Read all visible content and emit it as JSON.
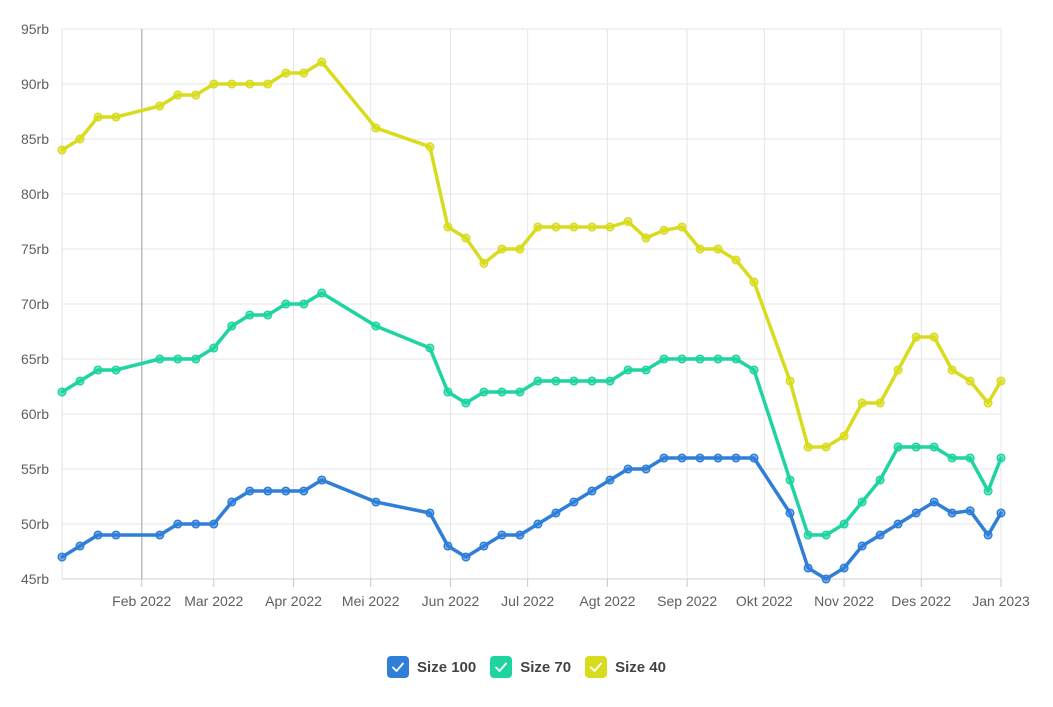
{
  "chart_data": {
    "type": "line",
    "title": "",
    "xlabel": "",
    "ylabel": "",
    "x_range": [
      "2022-01-01",
      "2023-01-01"
    ],
    "ylim": [
      45,
      95
    ],
    "y_ticks": [
      45,
      50,
      55,
      60,
      65,
      70,
      75,
      80,
      85,
      90,
      95
    ],
    "y_tick_suffix": "rb",
    "grid": true,
    "legend_position": "bottom",
    "x_ticks": [
      {
        "date": "2022-02-01",
        "label": "Feb 2022"
      },
      {
        "date": "2022-03-01",
        "label": "Mar 2022"
      },
      {
        "date": "2022-04-01",
        "label": "Apr 2022"
      },
      {
        "date": "2022-05-01",
        "label": "Mei 2022"
      },
      {
        "date": "2022-06-01",
        "label": "Jun 2022"
      },
      {
        "date": "2022-07-01",
        "label": "Jul 2022"
      },
      {
        "date": "2022-08-01",
        "label": "Agt 2022"
      },
      {
        "date": "2022-09-01",
        "label": "Sep 2022"
      },
      {
        "date": "2022-10-01",
        "label": "Okt 2022"
      },
      {
        "date": "2022-11-01",
        "label": "Nov 2022"
      },
      {
        "date": "2022-12-01",
        "label": "Des 2022"
      },
      {
        "date": "2023-01-01",
        "label": "Jan 2023"
      }
    ],
    "series": [
      {
        "name": "Size 100",
        "color": "#2f7ed8",
        "points": [
          [
            "2022-01-01",
            47
          ],
          [
            "2022-01-08",
            48
          ],
          [
            "2022-01-15",
            49
          ],
          [
            "2022-01-22",
            49
          ],
          [
            "2022-02-08",
            49
          ],
          [
            "2022-02-15",
            50
          ],
          [
            "2022-02-22",
            50
          ],
          [
            "2022-03-01",
            50
          ],
          [
            "2022-03-08",
            52
          ],
          [
            "2022-03-15",
            53
          ],
          [
            "2022-03-22",
            53
          ],
          [
            "2022-03-29",
            53
          ],
          [
            "2022-04-05",
            53
          ],
          [
            "2022-04-12",
            54
          ],
          [
            "2022-05-03",
            52
          ],
          [
            "2022-05-24",
            51
          ],
          [
            "2022-05-31",
            48
          ],
          [
            "2022-06-07",
            47
          ],
          [
            "2022-06-14",
            48
          ],
          [
            "2022-06-21",
            49
          ],
          [
            "2022-06-28",
            49
          ],
          [
            "2022-07-05",
            50
          ],
          [
            "2022-07-12",
            51
          ],
          [
            "2022-07-19",
            52
          ],
          [
            "2022-07-26",
            53
          ],
          [
            "2022-08-02",
            54
          ],
          [
            "2022-08-09",
            55
          ],
          [
            "2022-08-16",
            55
          ],
          [
            "2022-08-23",
            56
          ],
          [
            "2022-08-30",
            56
          ],
          [
            "2022-09-06",
            56
          ],
          [
            "2022-09-13",
            56
          ],
          [
            "2022-09-20",
            56
          ],
          [
            "2022-09-27",
            56
          ],
          [
            "2022-10-11",
            51
          ],
          [
            "2022-10-18",
            46
          ],
          [
            "2022-10-25",
            45
          ],
          [
            "2022-11-01",
            46
          ],
          [
            "2022-11-08",
            48
          ],
          [
            "2022-11-15",
            49
          ],
          [
            "2022-11-22",
            50
          ],
          [
            "2022-11-29",
            51
          ],
          [
            "2022-12-06",
            52
          ],
          [
            "2022-12-13",
            51
          ],
          [
            "2022-12-20",
            51.2
          ],
          [
            "2022-12-27",
            49
          ],
          [
            "2023-01-01",
            51
          ]
        ]
      },
      {
        "name": "Size 70",
        "color": "#1ed4a1",
        "points": [
          [
            "2022-01-01",
            62
          ],
          [
            "2022-01-08",
            63
          ],
          [
            "2022-01-15",
            64
          ],
          [
            "2022-01-22",
            64
          ],
          [
            "2022-02-08",
            65
          ],
          [
            "2022-02-15",
            65
          ],
          [
            "2022-02-22",
            65
          ],
          [
            "2022-03-01",
            66
          ],
          [
            "2022-03-08",
            68
          ],
          [
            "2022-03-15",
            69
          ],
          [
            "2022-03-22",
            69
          ],
          [
            "2022-03-29",
            70
          ],
          [
            "2022-04-05",
            70
          ],
          [
            "2022-04-12",
            71
          ],
          [
            "2022-05-03",
            68
          ],
          [
            "2022-05-24",
            66
          ],
          [
            "2022-05-31",
            62
          ],
          [
            "2022-06-07",
            61
          ],
          [
            "2022-06-14",
            62
          ],
          [
            "2022-06-21",
            62
          ],
          [
            "2022-06-28",
            62
          ],
          [
            "2022-07-05",
            63
          ],
          [
            "2022-07-12",
            63
          ],
          [
            "2022-07-19",
            63
          ],
          [
            "2022-07-26",
            63
          ],
          [
            "2022-08-02",
            63
          ],
          [
            "2022-08-09",
            64
          ],
          [
            "2022-08-16",
            64
          ],
          [
            "2022-08-23",
            65
          ],
          [
            "2022-08-30",
            65
          ],
          [
            "2022-09-06",
            65
          ],
          [
            "2022-09-13",
            65
          ],
          [
            "2022-09-20",
            65
          ],
          [
            "2022-09-27",
            64
          ],
          [
            "2022-10-11",
            54
          ],
          [
            "2022-10-18",
            49
          ],
          [
            "2022-10-25",
            49
          ],
          [
            "2022-11-01",
            50
          ],
          [
            "2022-11-08",
            52
          ],
          [
            "2022-11-15",
            54
          ],
          [
            "2022-11-22",
            57
          ],
          [
            "2022-11-29",
            57
          ],
          [
            "2022-12-06",
            57
          ],
          [
            "2022-12-13",
            56
          ],
          [
            "2022-12-20",
            56
          ],
          [
            "2022-12-27",
            53
          ],
          [
            "2023-01-01",
            56
          ]
        ]
      },
      {
        "name": "Size 40",
        "color": "#d9dc1e",
        "points": [
          [
            "2022-01-01",
            84
          ],
          [
            "2022-01-08",
            85
          ],
          [
            "2022-01-15",
            87
          ],
          [
            "2022-01-22",
            87
          ],
          [
            "2022-02-08",
            88
          ],
          [
            "2022-02-15",
            89
          ],
          [
            "2022-02-22",
            89
          ],
          [
            "2022-03-01",
            90
          ],
          [
            "2022-03-08",
            90
          ],
          [
            "2022-03-15",
            90
          ],
          [
            "2022-03-22",
            90
          ],
          [
            "2022-03-29",
            91
          ],
          [
            "2022-04-05",
            91
          ],
          [
            "2022-04-12",
            92
          ],
          [
            "2022-05-03",
            86
          ],
          [
            "2022-05-24",
            84.3
          ],
          [
            "2022-05-31",
            77
          ],
          [
            "2022-06-07",
            76
          ],
          [
            "2022-06-14",
            73.7
          ],
          [
            "2022-06-21",
            75
          ],
          [
            "2022-06-28",
            75
          ],
          [
            "2022-07-05",
            77
          ],
          [
            "2022-07-12",
            77
          ],
          [
            "2022-07-19",
            77
          ],
          [
            "2022-07-26",
            77
          ],
          [
            "2022-08-02",
            77
          ],
          [
            "2022-08-09",
            77.5
          ],
          [
            "2022-08-16",
            76
          ],
          [
            "2022-08-23",
            76.7
          ],
          [
            "2022-08-30",
            77
          ],
          [
            "2022-09-06",
            75
          ],
          [
            "2022-09-13",
            75
          ],
          [
            "2022-09-20",
            74
          ],
          [
            "2022-09-27",
            72
          ],
          [
            "2022-10-11",
            63
          ],
          [
            "2022-10-18",
            57
          ],
          [
            "2022-10-25",
            57
          ],
          [
            "2022-11-01",
            58
          ],
          [
            "2022-11-08",
            61
          ],
          [
            "2022-11-15",
            61
          ],
          [
            "2022-11-22",
            64
          ],
          [
            "2022-11-29",
            67
          ],
          [
            "2022-12-06",
            67
          ],
          [
            "2022-12-13",
            64
          ],
          [
            "2022-12-20",
            63
          ],
          [
            "2022-12-27",
            61
          ],
          [
            "2023-01-01",
            63
          ]
        ]
      }
    ]
  }
}
